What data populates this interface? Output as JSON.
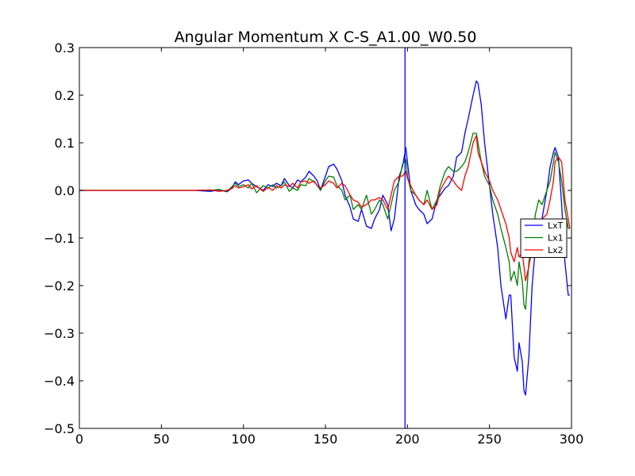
{
  "chart_data": {
    "type": "line",
    "title": "Angular Momentum X C-S_A1.00_W0.50",
    "xlabel": "",
    "ylabel": "",
    "xlim": [
      0,
      300
    ],
    "ylim": [
      -0.5,
      0.3
    ],
    "x_ticks": [
      0,
      50,
      100,
      150,
      200,
      250,
      300
    ],
    "x_tick_labels": [
      "0",
      "50",
      "100",
      "150",
      "200",
      "250",
      "300"
    ],
    "y_ticks": [
      -0.5,
      -0.4,
      -0.3,
      -0.2,
      -0.1,
      0.0,
      0.1,
      0.2,
      0.3
    ],
    "y_tick_labels": [
      "−0.5",
      "−0.4",
      "−0.3",
      "−0.2",
      "−0.1",
      "0.0",
      "0.1",
      "0.2",
      "0.3"
    ],
    "grid": false,
    "legend_position": "center-right",
    "vertical_marker": {
      "x": 198.5,
      "color": "#0000ff"
    },
    "series": [
      {
        "name": "LxT",
        "color": "#0000ff",
        "x": [
          0,
          60,
          70,
          80,
          85,
          90,
          93,
          95,
          97,
          100,
          103,
          105,
          108,
          112,
          115,
          118,
          120,
          123,
          125,
          128,
          130,
          133,
          135,
          138,
          140,
          143,
          145,
          147,
          150,
          152,
          155,
          157,
          160,
          162,
          165,
          167,
          170,
          172,
          175,
          178,
          180,
          183,
          185,
          188,
          190,
          192,
          195,
          197,
          199,
          200,
          202,
          205,
          207,
          210,
          212,
          215,
          218,
          220,
          223,
          225,
          228,
          230,
          233,
          235,
          237,
          240,
          242,
          243,
          245,
          247,
          250,
          252,
          255,
          257,
          260,
          262,
          263,
          265,
          267,
          268,
          270,
          271,
          272,
          274,
          276,
          278,
          280,
          282,
          285,
          287,
          289,
          290,
          292,
          294,
          296,
          298,
          299
        ],
        "y": [
          0,
          0,
          0,
          -0.002,
          0.001,
          -0.003,
          0.005,
          0.018,
          0.012,
          0.02,
          0.022,
          0.015,
          0.008,
          0.0,
          0.012,
          0.008,
          0.015,
          0.01,
          0.025,
          0.01,
          0.005,
          0.022,
          0.018,
          0.028,
          0.04,
          0.03,
          0.02,
          0.0,
          0.03,
          0.05,
          0.055,
          0.045,
          0.02,
          -0.01,
          -0.035,
          -0.06,
          -0.065,
          -0.04,
          -0.075,
          -0.08,
          -0.06,
          -0.04,
          -0.01,
          -0.03,
          -0.085,
          -0.06,
          0.03,
          0.05,
          0.09,
          0.06,
          0.0,
          -0.03,
          -0.04,
          -0.05,
          -0.07,
          -0.06,
          -0.02,
          -0.01,
          0.005,
          0.01,
          0.03,
          0.07,
          0.08,
          0.12,
          0.15,
          0.2,
          0.23,
          0.225,
          0.18,
          0.1,
          0.01,
          -0.05,
          -0.12,
          -0.2,
          -0.27,
          -0.22,
          -0.22,
          -0.35,
          -0.38,
          -0.32,
          -0.36,
          -0.42,
          -0.43,
          -0.35,
          -0.2,
          -0.12,
          -0.08,
          -0.06,
          0.0,
          0.05,
          0.08,
          0.09,
          0.07,
          -0.03,
          -0.15,
          -0.22,
          -0.22
        ]
      },
      {
        "name": "Lx1",
        "color": "#008000",
        "x": [
          0,
          60,
          70,
          80,
          85,
          90,
          93,
          95,
          97,
          100,
          103,
          105,
          108,
          112,
          115,
          118,
          120,
          123,
          125,
          128,
          130,
          133,
          135,
          138,
          140,
          143,
          145,
          147,
          150,
          152,
          155,
          157,
          160,
          162,
          165,
          167,
          170,
          172,
          175,
          178,
          180,
          183,
          185,
          188,
          190,
          192,
          195,
          197,
          199,
          200,
          202,
          205,
          207,
          210,
          212,
          215,
          218,
          220,
          223,
          225,
          228,
          230,
          233,
          235,
          237,
          240,
          242,
          243,
          245,
          247,
          250,
          252,
          255,
          257,
          260,
          262,
          263,
          265,
          267,
          268,
          270,
          271,
          272,
          274,
          276,
          278,
          280,
          282,
          285,
          287,
          289,
          290,
          292,
          294,
          296,
          298,
          299
        ],
        "y": [
          0,
          0,
          0,
          0,
          0.002,
          -0.002,
          0.008,
          0.015,
          0.008,
          0.012,
          0.005,
          0.015,
          -0.005,
          0.01,
          0.005,
          0.012,
          0.005,
          0.01,
          0.018,
          -0.002,
          0.005,
          0.0,
          0.012,
          0.01,
          0.025,
          0.018,
          0.01,
          0.0,
          0.02,
          0.03,
          0.028,
          0.01,
          0.0,
          -0.02,
          -0.01,
          -0.04,
          -0.03,
          -0.04,
          -0.01,
          -0.05,
          -0.04,
          -0.02,
          -0.03,
          -0.06,
          -0.03,
          0.0,
          0.02,
          0.055,
          0.065,
          0.03,
          0.0,
          -0.01,
          -0.02,
          -0.03,
          0.0,
          -0.04,
          -0.02,
          0.01,
          0.04,
          0.05,
          0.04,
          0.04,
          0.05,
          0.06,
          0.08,
          0.12,
          0.12,
          0.1,
          0.06,
          0.03,
          0.01,
          -0.02,
          -0.05,
          -0.08,
          -0.12,
          -0.15,
          -0.19,
          -0.17,
          -0.2,
          -0.15,
          -0.19,
          -0.24,
          -0.25,
          -0.15,
          -0.1,
          -0.05,
          -0.02,
          -0.03,
          0.0,
          0.02,
          0.06,
          0.08,
          0.06,
          0.02,
          -0.04,
          -0.08,
          -0.08
        ]
      },
      {
        "name": "Lx2",
        "color": "#ff0000",
        "x": [
          0,
          60,
          70,
          80,
          85,
          90,
          93,
          95,
          97,
          100,
          103,
          105,
          108,
          112,
          115,
          118,
          120,
          123,
          125,
          128,
          130,
          133,
          135,
          138,
          140,
          143,
          145,
          147,
          150,
          152,
          155,
          157,
          160,
          162,
          165,
          167,
          170,
          172,
          175,
          178,
          180,
          183,
          185,
          188,
          190,
          192,
          195,
          197,
          199,
          200,
          202,
          205,
          207,
          210,
          212,
          215,
          218,
          220,
          223,
          225,
          228,
          230,
          233,
          235,
          237,
          240,
          242,
          243,
          245,
          247,
          250,
          252,
          255,
          257,
          260,
          262,
          263,
          265,
          267,
          268,
          270,
          271,
          272,
          274,
          276,
          278,
          280,
          282,
          285,
          287,
          289,
          290,
          292,
          294,
          296,
          298,
          299
        ],
        "y": [
          0,
          0,
          0,
          0.001,
          -0.002,
          0.0,
          0.004,
          0.01,
          0.005,
          0.008,
          0.012,
          0.003,
          0.01,
          -0.002,
          0.006,
          0.0,
          0.01,
          0.005,
          0.012,
          0.008,
          0.015,
          0.005,
          0.018,
          0.02,
          0.015,
          0.02,
          0.01,
          0.005,
          0.012,
          0.02,
          0.015,
          0.005,
          0.015,
          0.01,
          -0.01,
          -0.02,
          -0.025,
          -0.035,
          -0.03,
          -0.02,
          -0.02,
          -0.015,
          -0.02,
          -0.04,
          -0.01,
          0.02,
          0.03,
          0.03,
          0.04,
          0.025,
          0.01,
          -0.01,
          -0.02,
          -0.03,
          -0.02,
          -0.04,
          -0.03,
          0.0,
          0.02,
          0.03,
          0.02,
          0.01,
          0.0,
          0.03,
          0.05,
          0.1,
          0.115,
          0.08,
          0.06,
          0.04,
          0.02,
          0.0,
          -0.02,
          -0.04,
          -0.07,
          -0.1,
          -0.13,
          -0.15,
          -0.12,
          -0.14,
          -0.13,
          -0.16,
          -0.19,
          -0.16,
          -0.12,
          -0.1,
          -0.08,
          -0.06,
          -0.05,
          -0.02,
          0.02,
          0.06,
          0.07,
          0.06,
          -0.02,
          -0.06,
          -0.08
        ]
      }
    ]
  }
}
